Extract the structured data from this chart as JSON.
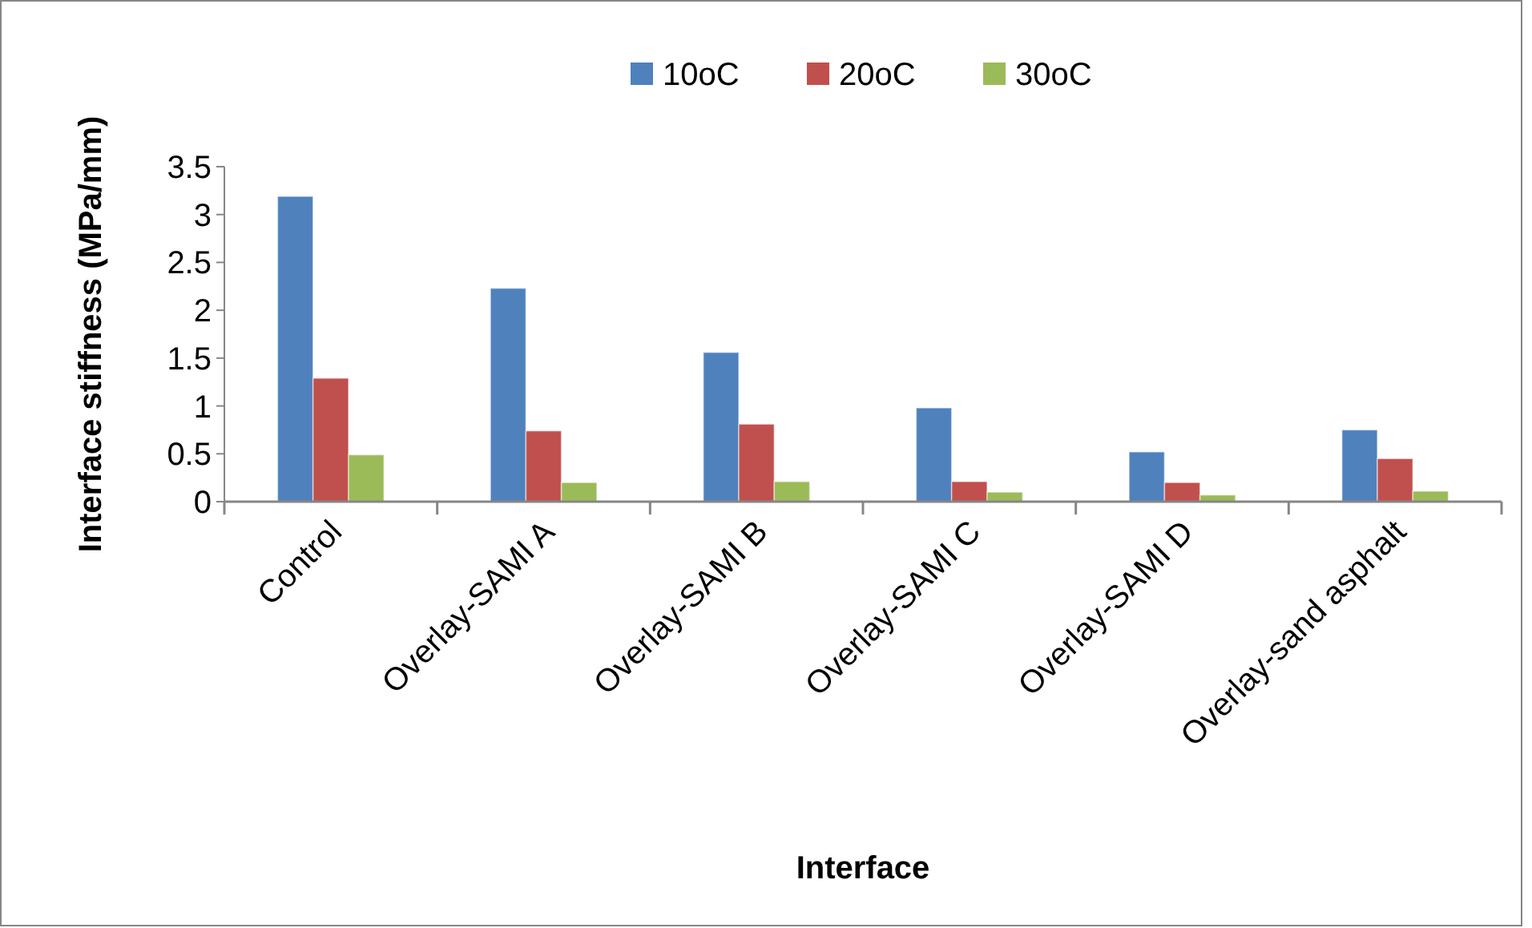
{
  "chart_data": {
    "type": "bar",
    "xlabel": "Interface",
    "ylabel": "Interface stiffness (MPa/mm)",
    "categories": [
      "Control",
      "Overlay-SAMI A",
      "Overlay-SAMI B",
      "Overlay-SAMI C",
      "Overlay-SAMI D",
      "Overlay-sand asphalt"
    ],
    "series": [
      {
        "name": "10oC",
        "color": "#4f81bd",
        "values": [
          3.19,
          2.23,
          1.56,
          0.98,
          0.52,
          0.75
        ]
      },
      {
        "name": "20oC",
        "color": "#c0504d",
        "values": [
          1.29,
          0.74,
          0.81,
          0.21,
          0.2,
          0.45
        ]
      },
      {
        "name": "30oC",
        "color": "#9bbb59",
        "values": [
          0.49,
          0.2,
          0.21,
          0.1,
          0.07,
          0.11
        ]
      }
    ],
    "ylim": [
      0,
      3.5
    ],
    "yticks": [
      0,
      0.5,
      1,
      1.5,
      2,
      2.5,
      3,
      3.5
    ],
    "grid": false,
    "legend": "top"
  }
}
